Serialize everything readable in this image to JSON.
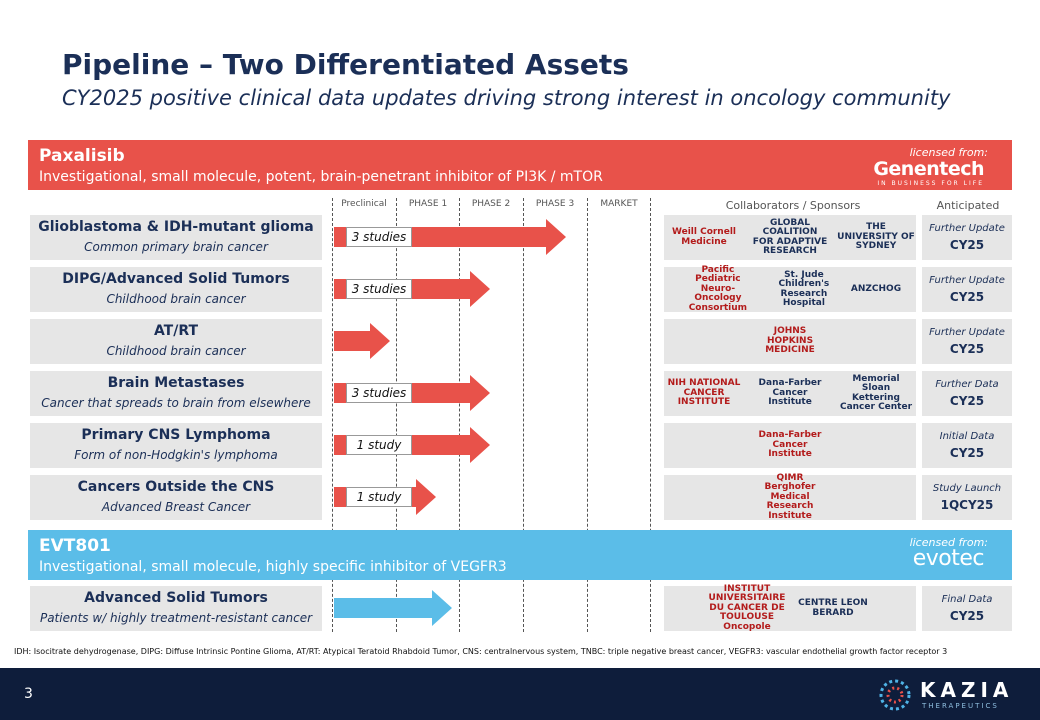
{
  "header": {
    "title": "Pipeline – Two Differentiated Assets",
    "subtitle": "CY2025 positive clinical data updates driving strong interest in oncology community"
  },
  "columns": {
    "phases": [
      "Preclinical",
      "PHASE 1",
      "PHASE 2",
      "PHASE 3",
      "MARKET"
    ],
    "collaborators": "Collaborators / Sponsors",
    "anticipated": "Anticipated"
  },
  "assets": [
    {
      "name": "Paxalisib",
      "description": "Investigational, small molecule, potent, brain-penetrant inhibitor of PI3K / mTOR",
      "licensed_label": "licensed from:",
      "licensor": "Genentech",
      "licensor_tagline": "IN BUSINESS FOR LIFE",
      "indications": [
        {
          "name": "Glioblastoma & IDH-mutant glioma",
          "subtitle": "Common primary brain cancer",
          "studies": "3 studies",
          "collaborators": [
            "Weill Cornell Medicine",
            "GLOBAL COALITION FOR ADAPTIVE RESEARCH",
            "THE UNIVERSITY OF SYDNEY"
          ],
          "anticipated": {
            "label": "Further Update",
            "date": "CY25"
          }
        },
        {
          "name": "DIPG/Advanced Solid Tumors",
          "subtitle": "Childhood brain cancer",
          "studies": "3  studies",
          "collaborators": [
            "Pacific Pediatric Neuro-Oncology Consortium",
            "St. Jude Children's Research Hospital",
            "ANZCHOG"
          ],
          "anticipated": {
            "label": "Further Update",
            "date": "CY25"
          }
        },
        {
          "name": "AT/RT",
          "subtitle": "Childhood brain cancer",
          "collaborators": [
            "JOHNS HOPKINS MEDICINE"
          ],
          "anticipated": {
            "label": "Further Update",
            "date": "CY25"
          }
        },
        {
          "name": "Brain Metastases",
          "subtitle": "Cancer that spreads to brain from elsewhere",
          "studies": "3 studies",
          "collaborators": [
            "NIH NATIONAL CANCER INSTITUTE",
            "Dana-Farber Cancer Institute",
            "Memorial Sloan Kettering Cancer Center"
          ],
          "anticipated": {
            "label": "Further Data",
            "date": "CY25"
          }
        },
        {
          "name": "Primary CNS Lymphoma",
          "subtitle": "Form of non-Hodgkin's lymphoma",
          "studies": "1 study",
          "collaborators": [
            "Dana-Farber Cancer Institute"
          ],
          "anticipated": {
            "label": "Initial Data",
            "date": "CY25"
          }
        },
        {
          "name": "Cancers Outside the CNS",
          "subtitle": "Advanced Breast Cancer",
          "studies": "1  study",
          "collaborators": [
            "QIMR Berghofer Medical Research Institute"
          ],
          "anticipated": {
            "label": "Study Launch",
            "date": "1QCY25"
          }
        }
      ]
    },
    {
      "name": "EVT801",
      "description": "Investigational, small molecule, highly specific inhibitor of VEGFR3",
      "licensed_label": "licensed from:",
      "licensor": "evotec",
      "indications": [
        {
          "name": "Advanced Solid Tumors",
          "subtitle": "Patients w/ highly treatment-resistant cancer",
          "collaborators": [
            "INSTITUT UNIVERSITAIRE DU CANCER DE TOULOUSE Oncopole",
            "CENTRE LEON BERARD"
          ],
          "anticipated": {
            "label": "Final Data",
            "date": "CY25"
          }
        }
      ]
    }
  ],
  "footnote": "IDH: Isocitrate dehydrogenase, DIPG: Diffuse Intrinsic Pontine Glioma, AT/RT: Atypical Teratoid Rhabdoid Tumor, CNS: centralnervous system, TNBC: triple negative breast cancer, VEGFR3: vascular endothelial growth factor receptor 3",
  "page_number": "3",
  "company": {
    "name": "KAZIA",
    "tagline": "THERAPEUTICS"
  }
}
